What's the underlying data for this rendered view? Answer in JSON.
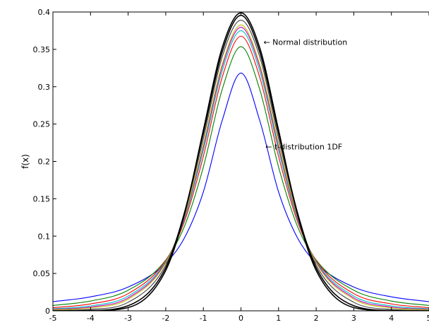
{
  "chart_data": {
    "type": "line",
    "title": "",
    "xlabel": "",
    "ylabel": "f(x)",
    "xlim": [
      -5,
      5
    ],
    "ylim": [
      0,
      0.4
    ],
    "xticks": [
      -5,
      -4,
      -3,
      -2,
      -1,
      0,
      1,
      2,
      3,
      4,
      5
    ],
    "yticks": [
      0,
      0.05,
      0.1,
      0.15,
      0.2,
      0.25,
      0.3,
      0.35,
      0.4
    ],
    "grid": false,
    "legend": "none",
    "x": [
      -5,
      -4,
      -3,
      -2,
      -1.5,
      -1,
      -0.5,
      0,
      0.5,
      1,
      1.5,
      2,
      3,
      4,
      5
    ],
    "series": [
      {
        "df": 1,
        "color": "#0000ff",
        "values": [
          0.0122,
          0.0187,
          0.0318,
          0.0637,
          0.0979,
          0.1592,
          0.2546,
          0.3183,
          0.2546,
          0.1592,
          0.0979,
          0.0637,
          0.0318,
          0.0187,
          0.0122
        ]
      },
      {
        "df": 2,
        "color": "#008000",
        "values": [
          0.0071,
          0.0131,
          0.0275,
          0.068,
          0.1134,
          0.1925,
          0.2962,
          0.3536,
          0.2962,
          0.1925,
          0.1134,
          0.068,
          0.0275,
          0.0131,
          0.0071
        ]
      },
      {
        "df": 3,
        "color": "#ff0000",
        "values": [
          0.0042,
          0.0092,
          0.023,
          0.0675,
          0.12,
          0.2067,
          0.3125,
          0.3676,
          0.3125,
          0.2067,
          0.12,
          0.0675,
          0.023,
          0.0092,
          0.0042
        ]
      },
      {
        "df": 4,
        "color": "#00bfbf",
        "values": [
          0.0026,
          0.0066,
          0.0197,
          0.0663,
          0.1235,
          0.2147,
          0.321,
          0.375,
          0.321,
          0.2147,
          0.1235,
          0.0663,
          0.0197,
          0.0066,
          0.0026
        ]
      },
      {
        "df": 5,
        "color": "#bf00bf",
        "values": [
          0.0018,
          0.0051,
          0.0173,
          0.0651,
          0.1256,
          0.2197,
          0.3264,
          0.3796,
          0.3264,
          0.2197,
          0.1256,
          0.0651,
          0.0173,
          0.0051,
          0.0018
        ]
      },
      {
        "df": 6,
        "color": "#bfbf00",
        "values": [
          0.0012,
          0.004,
          0.0155,
          0.0641,
          0.1271,
          0.2231,
          0.33,
          0.3827,
          0.33,
          0.2231,
          0.1271,
          0.0641,
          0.0155,
          0.004,
          0.0012
        ]
      },
      {
        "df": 10,
        "color": "#404040",
        "values": [
          0.0004,
          0.002,
          0.0114,
          0.0611,
          0.13,
          0.2304,
          0.3397,
          0.3891,
          0.3397,
          0.2304,
          0.13,
          0.0611,
          0.0114,
          0.002,
          0.0004
        ]
      },
      {
        "df": 30,
        "color": "#000000",
        "values": [
          0.0,
          0.0005,
          0.0068,
          0.0577,
          0.1319,
          0.2375,
          0.3464,
          0.3956,
          0.3464,
          0.2375,
          0.1319,
          0.0577,
          0.0068,
          0.0005,
          0.0
        ]
      },
      {
        "name": "Normal distribution",
        "color": "#000000",
        "values": [
          0.0,
          0.0001,
          0.0044,
          0.054,
          0.1295,
          0.242,
          0.3521,
          0.3989,
          0.3521,
          0.242,
          0.1295,
          0.054,
          0.0044,
          0.0001,
          0.0
        ]
      }
    ],
    "annotations": [
      {
        "text": "← Normal distribution",
        "x": 0.6,
        "y": 0.36
      },
      {
        "text": "← t-distribution 1DF",
        "x": 0.65,
        "y": 0.22
      }
    ]
  }
}
